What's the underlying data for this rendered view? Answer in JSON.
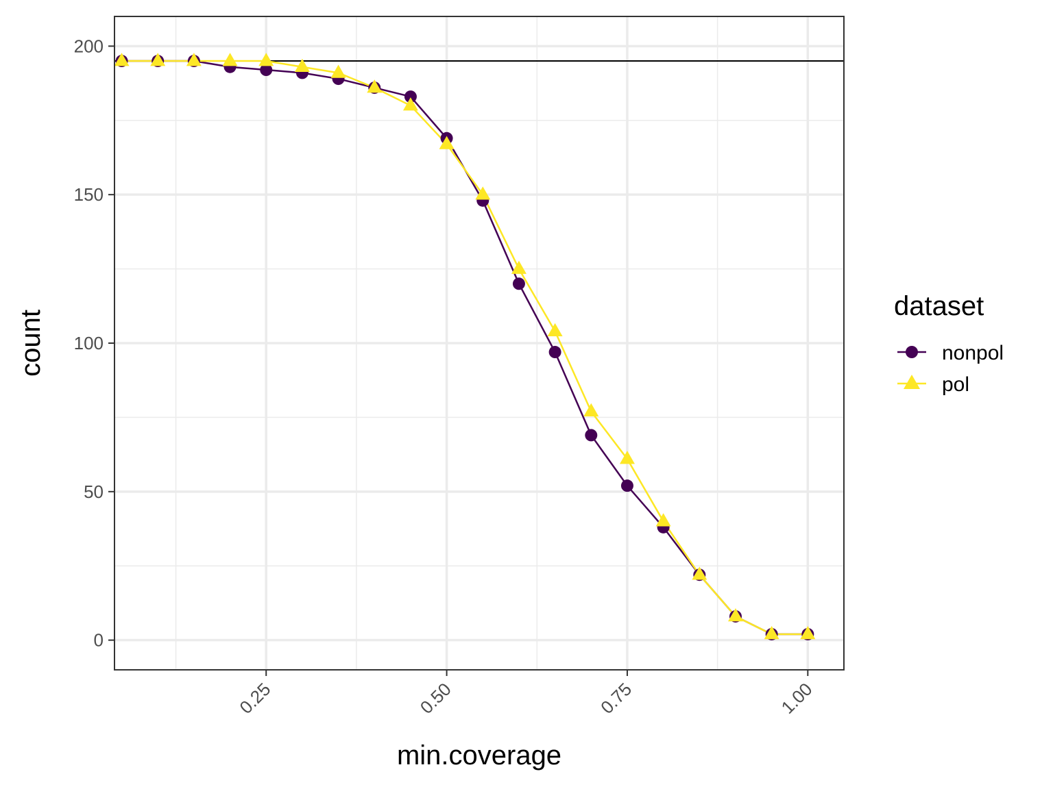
{
  "chart_data": {
    "type": "line",
    "title": "",
    "xlabel": "min.coverage",
    "ylabel": "count",
    "xlim": [
      0.04,
      1.05
    ],
    "ylim": [
      -10,
      210
    ],
    "x_ticks": [
      0.25,
      0.5,
      0.75,
      1.0
    ],
    "x_tick_labels": [
      "0.25",
      "0.50",
      "0.75",
      "1.00"
    ],
    "y_ticks": [
      0,
      50,
      100,
      150,
      200
    ],
    "y_tick_labels": [
      "0",
      "50",
      "100",
      "150",
      "200"
    ],
    "grid": true,
    "reference_line": {
      "y": 195
    },
    "legend": {
      "title": "dataset",
      "position": "right"
    },
    "x": [
      0.05,
      0.1,
      0.15,
      0.2,
      0.25,
      0.3,
      0.35,
      0.4,
      0.45,
      0.5,
      0.55,
      0.6,
      0.65,
      0.7,
      0.75,
      0.8,
      0.85,
      0.9,
      0.95,
      1.0
    ],
    "series": [
      {
        "name": "nonpol",
        "marker": "circle",
        "color": "#440154",
        "values": [
          195,
          195,
          195,
          193,
          192,
          191,
          189,
          186,
          183,
          169,
          148,
          120,
          97,
          69,
          52,
          38,
          22,
          8,
          2,
          2
        ]
      },
      {
        "name": "pol",
        "marker": "triangle",
        "color": "#FDE725",
        "values": [
          195,
          195,
          195,
          195,
          195,
          193,
          191,
          186,
          180,
          167,
          150,
          125,
          104,
          77,
          61,
          40,
          22,
          8,
          2,
          2
        ]
      }
    ]
  }
}
